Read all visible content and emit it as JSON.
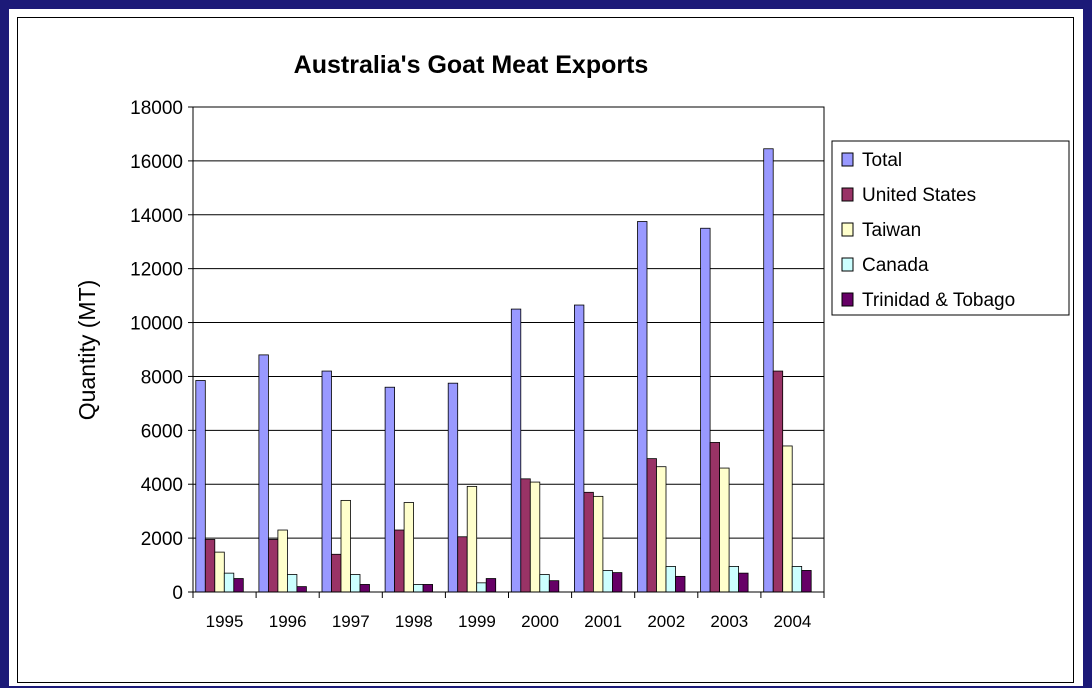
{
  "chart_data": {
    "type": "bar",
    "title": "Australia's Goat Meat Exports",
    "ylabel": "Quantity (MT)",
    "xlabel": "",
    "ylim": [
      0,
      18000
    ],
    "yticks": [
      "0",
      "2000",
      "4000",
      "6000",
      "8000",
      "10000",
      "12000",
      "14000",
      "16000",
      "18000"
    ],
    "categories": [
      "1995",
      "1996",
      "1997",
      "1998",
      "1999",
      "2000",
      "2001",
      "2002",
      "2003",
      "2004"
    ],
    "grid": true,
    "legend_position": "right",
    "series": [
      {
        "name": "Total",
        "color": "#9999ff",
        "values": [
          7850,
          8800,
          8200,
          7600,
          7750,
          10500,
          10650,
          13750,
          13500,
          16450
        ]
      },
      {
        "name": "United States",
        "color": "#993366",
        "values": [
          1950,
          1950,
          1400,
          2300,
          2050,
          4200,
          3700,
          4950,
          5550,
          8200
        ]
      },
      {
        "name": "Taiwan",
        "color": "#ffffcc",
        "values": [
          1480,
          2300,
          3400,
          3320,
          3920,
          4080,
          3550,
          4650,
          4600,
          5420
        ]
      },
      {
        "name": "Canada",
        "color": "#ccffff",
        "values": [
          700,
          650,
          650,
          280,
          340,
          650,
          800,
          950,
          950,
          950
        ]
      },
      {
        "name": "Trinidad & Tobago",
        "color": "#660066",
        "values": [
          500,
          200,
          280,
          280,
          500,
          420,
          720,
          580,
          700,
          800
        ]
      }
    ]
  }
}
